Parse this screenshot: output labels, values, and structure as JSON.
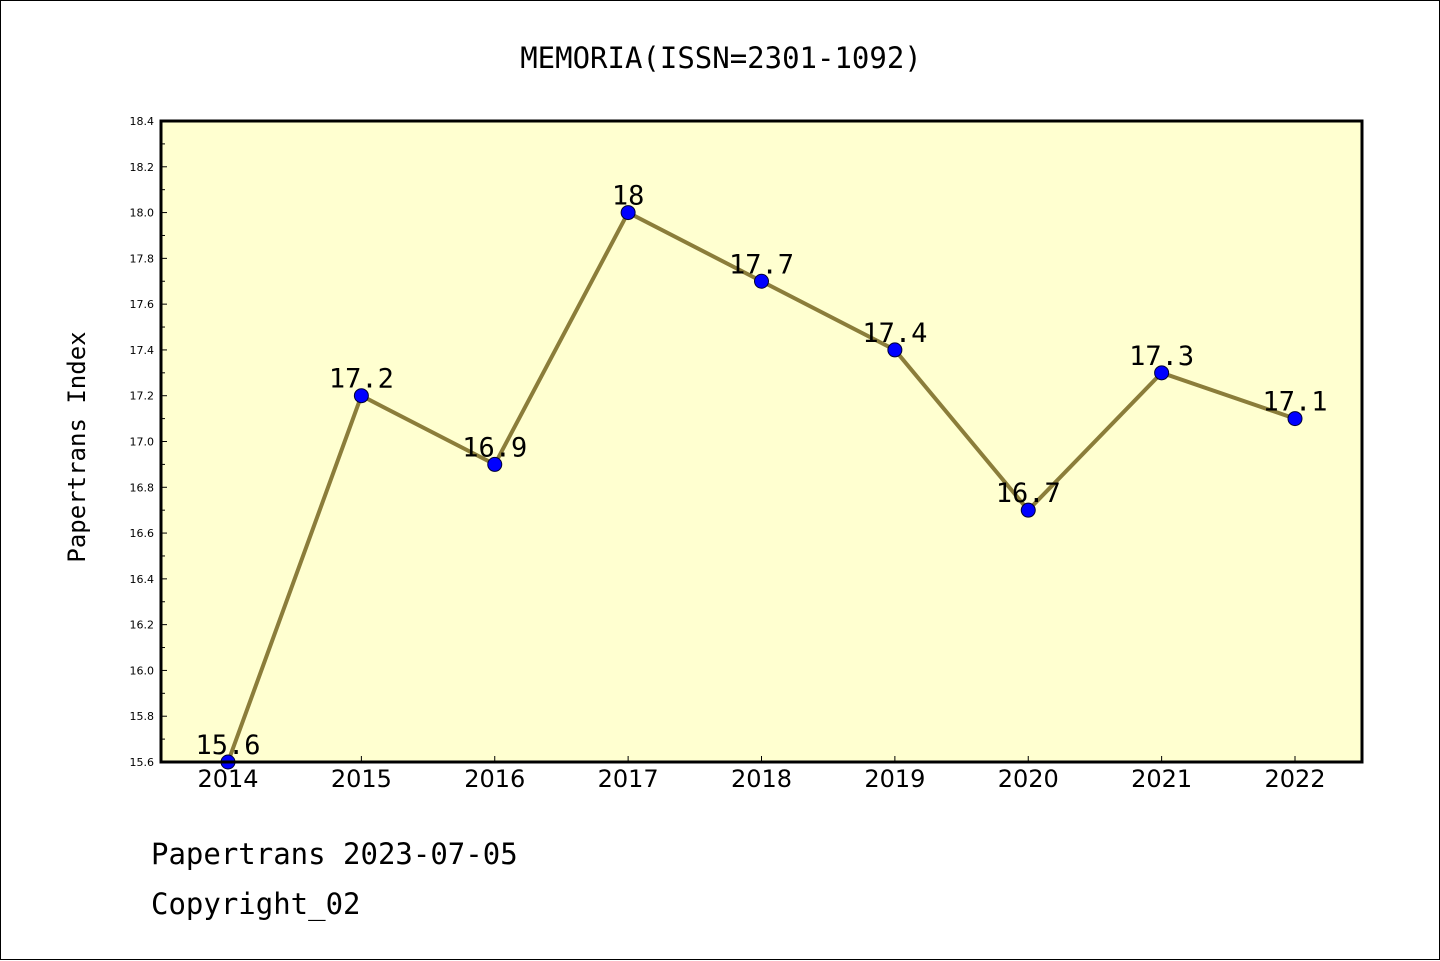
{
  "chart_data": {
    "type": "line",
    "title": "MEMORIA(ISSN=2301-1092)",
    "xlabel": "",
    "ylabel": "Papertrans Index",
    "categories": [
      "2014",
      "2015",
      "2016",
      "2017",
      "2018",
      "2019",
      "2020",
      "2021",
      "2022"
    ],
    "values": [
      15.6,
      17.2,
      16.9,
      18,
      17.7,
      17.4,
      16.7,
      17.3,
      17.1
    ],
    "data_labels": [
      "15.6",
      "17.2",
      "16.9",
      "18",
      "17.7",
      "17.4",
      "16.7",
      "17.3",
      "17.1"
    ],
    "y_ticks": [
      "15.6",
      "15.8",
      "16.0",
      "16.2",
      "16.4",
      "16.6",
      "16.8",
      "17.0",
      "17.2",
      "17.4",
      "17.6",
      "17.8",
      "18.0",
      "18.2",
      "18.4"
    ],
    "ylim": [
      15.6,
      18.4
    ],
    "grid": false,
    "colors": {
      "plot_background": "#ffffd0",
      "line": "#8b7d3a",
      "marker": "#0000ff",
      "axes": "#000000"
    }
  },
  "footer": {
    "line1": "Papertrans 2023-07-05",
    "line2": "Copyright_02"
  }
}
